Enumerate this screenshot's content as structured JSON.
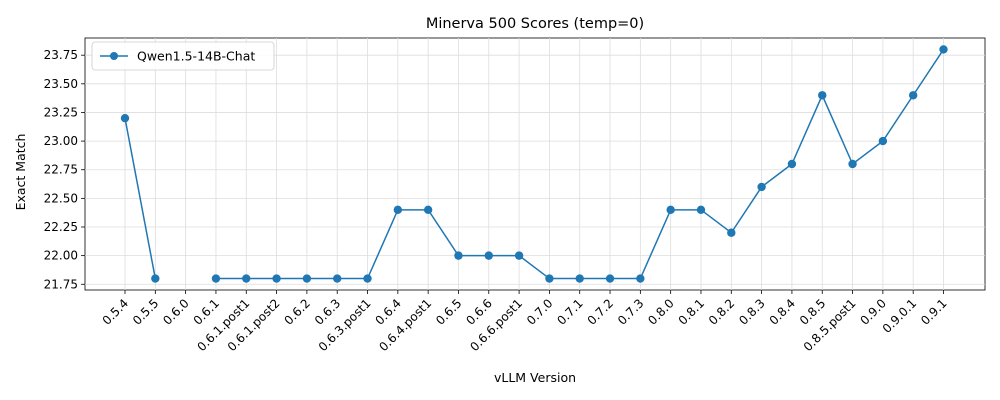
{
  "chart_data": {
    "type": "line",
    "title": "Minerva 500 Scores (temp=0)",
    "xlabel": "vLLM Version",
    "ylabel": "Exact Match",
    "categories": [
      "0.5.4",
      "0.5.5",
      "0.6.0",
      "0.6.1",
      "0.6.1.post1",
      "0.6.1.post2",
      "0.6.2",
      "0.6.3",
      "0.6.3.post1",
      "0.6.4",
      "0.6.4.post1",
      "0.6.5",
      "0.6.6",
      "0.6.6.post1",
      "0.7.0",
      "0.7.1",
      "0.7.2",
      "0.7.3",
      "0.8.0",
      "0.8.1",
      "0.8.2",
      "0.8.3",
      "0.8.4",
      "0.8.5",
      "0.8.5.post1",
      "0.9.0",
      "0.9.0.1",
      "0.9.1"
    ],
    "series": [
      {
        "name": "Qwen1.5-14B-Chat",
        "color": "#1f77b4",
        "values": [
          23.2,
          21.8,
          null,
          21.8,
          21.8,
          21.8,
          21.8,
          21.8,
          21.8,
          22.4,
          22.4,
          22.0,
          22.0,
          22.0,
          21.8,
          21.8,
          21.8,
          21.8,
          22.4,
          22.4,
          22.2,
          22.6,
          22.8,
          23.4,
          22.8,
          23.0,
          23.4,
          23.8
        ]
      }
    ],
    "ylim": [
      21.7,
      23.9
    ],
    "yticks": [
      "21.75",
      "22.00",
      "22.25",
      "22.50",
      "22.75",
      "23.00",
      "23.25",
      "23.50",
      "23.75"
    ],
    "grid": true,
    "legend_position": "upper-left"
  }
}
